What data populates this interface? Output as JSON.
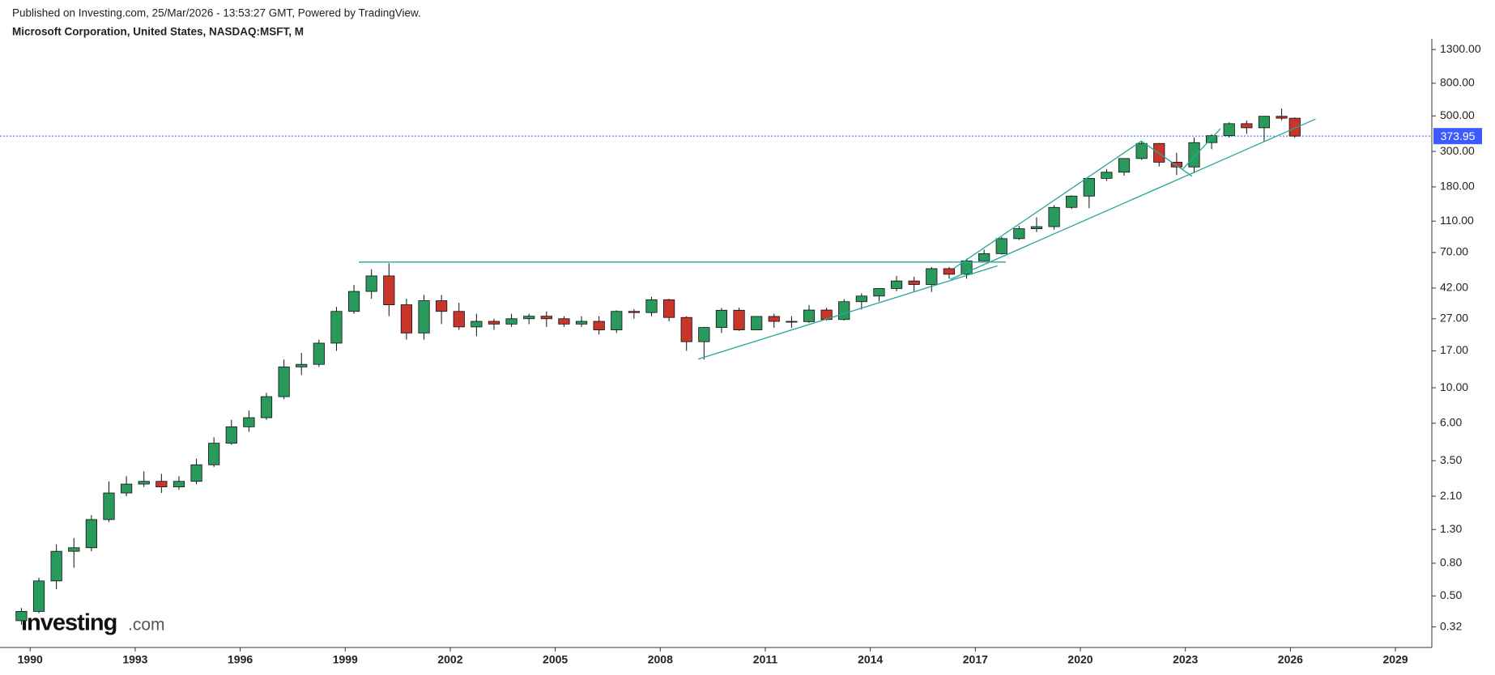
{
  "header": {
    "published": "Published on Investing.com, 25/Mar/2026 - 13:53:27 GMT, Powered by TradingView.",
    "symbol": "Microsoft Corporation, United States, NASDAQ:MSFT, M"
  },
  "logo": {
    "name": "Investing",
    "suffix": ".com"
  },
  "chart_data": {
    "type": "candlestick",
    "log_scale": true,
    "up_color": "#2a9a5c",
    "down_color": "#c8352b",
    "line_color": "#26a69a",
    "price_line_color": "#3d5afe",
    "last_price": 373.95,
    "x": [
      1989.75,
      1990.25,
      1990.75,
      1991.25,
      1991.75,
      1992.25,
      1992.75,
      1993.25,
      1993.75,
      1994.25,
      1994.75,
      1995.25,
      1995.75,
      1996.25,
      1996.75,
      1997.25,
      1997.75,
      1998.25,
      1998.75,
      1999.25,
      1999.75,
      2000.25,
      2000.75,
      2001.25,
      2001.75,
      2002.25,
      2002.75,
      2003.25,
      2003.75,
      2004.25,
      2004.75,
      2005.25,
      2005.75,
      2006.25,
      2006.75,
      2007.25,
      2007.75,
      2008.25,
      2008.75,
      2009.25,
      2009.75,
      2010.25,
      2010.75,
      2011.25,
      2011.75,
      2012.25,
      2012.75,
      2013.25,
      2013.75,
      2014.25,
      2014.75,
      2015.25,
      2015.75,
      2016.25,
      2016.75,
      2017.25,
      2017.75,
      2018.25,
      2018.75,
      2019.25,
      2019.75,
      2020.25,
      2020.75,
      2021.25,
      2021.75,
      2022.25,
      2022.75,
      2023.25,
      2023.75,
      2024.25,
      2024.75,
      2025.25,
      2025.75,
      2026.125
    ],
    "open": [
      0.35,
      0.4,
      0.62,
      0.95,
      1.0,
      1.5,
      2.2,
      2.5,
      2.6,
      2.4,
      2.6,
      3.3,
      4.5,
      5.7,
      6.5,
      8.8,
      13.5,
      14,
      19,
      30,
      40,
      50,
      33,
      22,
      35,
      30,
      24,
      26,
      25,
      27,
      28,
      27,
      25,
      26,
      23,
      30,
      29.5,
      35.5,
      27.5,
      19.4,
      23.8,
      30.5,
      23,
      27.9,
      26,
      25.9,
      30.6,
      26.7,
      34.5,
      37.4,
      41.7,
      46.5,
      44.2,
      55.5,
      51.2,
      62.1,
      68.9,
      85.5,
      98.6,
      101.6,
      134,
      157.7,
      203.5,
      222.4,
      270.9,
      336.3,
      256.8,
      239.8,
      340.5,
      376,
      447,
      421.5,
      497.4,
      483.6
    ],
    "high": [
      0.42,
      0.65,
      1.05,
      1.15,
      1.6,
      2.6,
      2.8,
      3.0,
      2.9,
      2.8,
      3.6,
      4.9,
      6.3,
      7.2,
      9.3,
      15,
      16.5,
      20,
      32,
      44,
      55,
      60,
      36,
      38,
      38,
      34,
      29,
      27,
      29,
      29,
      30,
      28,
      28,
      28,
      30.5,
      31,
      37,
      36,
      28,
      24,
      31.5,
      31.6,
      28,
      29,
      28,
      32.9,
      31.6,
      35.8,
      38.9,
      42,
      50,
      49.5,
      56.8,
      56.8,
      64.1,
      72.9,
      87.5,
      102.7,
      116.2,
      138.4,
      159.5,
      204,
      232.9,
      271.6,
      349.7,
      339,
      294,
      366.8,
      384.3,
      456,
      468,
      500,
      555.5,
      489.7
    ],
    "low": [
      0.33,
      0.39,
      0.55,
      0.75,
      0.95,
      1.45,
      2.1,
      2.4,
      2.2,
      2.3,
      2.5,
      3.2,
      4.4,
      5.3,
      6.3,
      8.5,
      12,
      13.5,
      17,
      29,
      36,
      28,
      20,
      20,
      25,
      23,
      21,
      23,
      24,
      25,
      24,
      24,
      24,
      21.5,
      22,
      27,
      28,
      26,
      17,
      15,
      22,
      22.7,
      23,
      23.7,
      23.7,
      25.4,
      26.3,
      26.3,
      30.8,
      34.6,
      40.1,
      40.1,
      39.7,
      48,
      48,
      61.9,
      68,
      83.8,
      93.9,
      97.2,
      130.8,
      132.5,
      196.2,
      211.9,
      265.5,
      241.5,
      213.4,
      219.4,
      309.5,
      366.5,
      385.6,
      344.8,
      470,
      365
    ],
    "close": [
      0.4,
      0.62,
      0.95,
      1.0,
      1.5,
      2.2,
      2.5,
      2.6,
      2.4,
      2.6,
      3.3,
      4.5,
      5.7,
      6.5,
      8.8,
      13.5,
      14,
      19,
      30,
      40,
      50,
      33,
      22,
      35,
      30,
      24,
      26,
      25,
      27,
      28,
      27,
      25,
      26,
      23,
      30,
      29.5,
      35.5,
      27.5,
      19.4,
      23.8,
      30.5,
      23,
      27.9,
      26,
      25.9,
      30.6,
      26.7,
      34.5,
      37.4,
      41.7,
      46.5,
      44.2,
      55.5,
      51.2,
      62.1,
      68.9,
      85.5,
      98.6,
      101.6,
      134,
      157.7,
      203.5,
      222.4,
      270.9,
      336.3,
      256.8,
      239.8,
      340.5,
      376,
      447,
      421.5,
      497.4,
      483.6,
      373.95
    ],
    "trendlines": [
      {
        "x": [
          1999.39,
          2017.87
        ],
        "y": [
          61,
          61
        ]
      },
      {
        "x": [
          2009.08,
          2017.63
        ],
        "y": [
          15.1,
          57.8
        ]
      },
      {
        "x": [
          2016.29,
          2026.72
        ],
        "y": [
          47.6,
          478
        ]
      },
      {
        "x": [
          2016.37,
          2021.74
        ],
        "y": [
          55.4,
          348
        ]
      },
      {
        "x": [
          2021.74,
          2023.19
        ],
        "y": [
          348,
          210
        ]
      },
      {
        "x": [
          2022.91,
          2024.0
        ],
        "y": [
          231,
          416
        ]
      }
    ],
    "xlim": [
      1989.37,
      2030.04
    ],
    "ylim": [
      0.238,
      1430
    ],
    "xticks": [
      1990,
      1993,
      1996,
      1999,
      2002,
      2005,
      2008,
      2011,
      2014,
      2017,
      2020,
      2023,
      2026,
      2029
    ],
    "yticks": [
      {
        "value": 0.32,
        "label": "0.32"
      },
      {
        "value": 0.5,
        "label": "0.50"
      },
      {
        "value": 0.8,
        "label": "0.80"
      },
      {
        "value": 1.3,
        "label": "1.30"
      },
      {
        "value": 2.1,
        "label": "2.10"
      },
      {
        "value": 3.5,
        "label": "3.50"
      },
      {
        "value": 6,
        "label": "6.00"
      },
      {
        "value": 10,
        "label": "10.00"
      },
      {
        "value": 17,
        "label": "17.00"
      },
      {
        "value": 27,
        "label": "27.00"
      },
      {
        "value": 42,
        "label": "42.00"
      },
      {
        "value": 70,
        "label": "70.00"
      },
      {
        "value": 110,
        "label": "110.00"
      },
      {
        "value": 180,
        "label": "180.00"
      },
      {
        "value": 300,
        "label": "300.00"
      },
      {
        "value": 500,
        "label": "500.00"
      },
      {
        "value": 800,
        "label": "800.00"
      },
      {
        "value": 1300,
        "label": "1300.00"
      }
    ]
  }
}
